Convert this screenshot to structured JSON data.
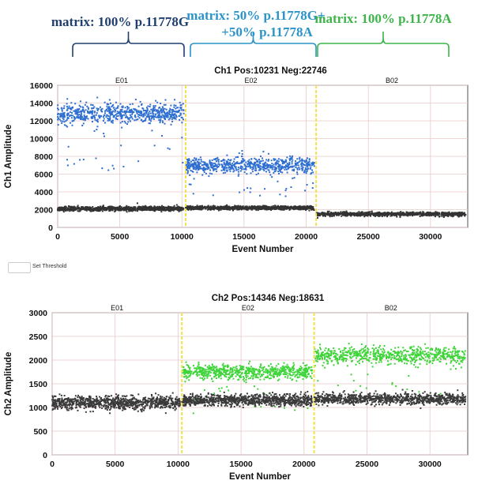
{
  "annotations": [
    {
      "lines": [
        "matrix: 100% p.11778G"
      ],
      "color": "#1f3f6e",
      "x_range": [
        0,
        10300
      ]
    },
    {
      "lines": [
        "matrix: 50% p.11778G+",
        "+50% p.11778A"
      ],
      "color": "#2a93c9",
      "x_range": [
        10300,
        20800
      ]
    },
    {
      "lines": [
        "matrix: 100% p.11778A"
      ],
      "color": "#3db54a",
      "x_range": [
        20800,
        33000
      ]
    }
  ],
  "threshold": {
    "label": "Set Threshold",
    "value": ""
  },
  "chart_data": [
    {
      "type": "scatter",
      "title": "Ch1 Pos:10231 Neg:22746",
      "xlabel": "Event Number",
      "ylabel": "Ch1 Amplitude",
      "xlim": [
        0,
        33000
      ],
      "ylim": [
        0,
        16000
      ],
      "xticks": [
        0,
        5000,
        10000,
        15000,
        20000,
        25000,
        30000
      ],
      "yticks": [
        0,
        2000,
        4000,
        6000,
        8000,
        10000,
        12000,
        14000,
        16000
      ],
      "grid": true,
      "wells": [
        {
          "name": "E01",
          "range": [
            0,
            10300
          ]
        },
        {
          "name": "E02",
          "range": [
            10300,
            20800
          ]
        },
        {
          "name": "B02",
          "range": [
            20800,
            33000
          ]
        }
      ],
      "well_divider_color": "#f2e24a",
      "clusters": [
        {
          "well": "E01",
          "kind": "positive",
          "color": "#2f6fd0",
          "mean": 12800,
          "sd": 550
        },
        {
          "well": "E01",
          "kind": "negative",
          "color": "#333333",
          "mean": 2100,
          "sd": 120
        },
        {
          "well": "E02",
          "kind": "positive",
          "color": "#2f6fd0",
          "mean": 7000,
          "sd": 450
        },
        {
          "well": "E02",
          "kind": "negative",
          "color": "#333333",
          "mean": 2200,
          "sd": 110
        },
        {
          "well": "B02",
          "kind": "negative",
          "color": "#333333",
          "mean": 1500,
          "sd": 110
        }
      ]
    },
    {
      "type": "scatter",
      "title": "Ch2 Pos:14346 Neg:18631",
      "xlabel": "Event Number",
      "ylabel": "Ch2 Amplitude",
      "xlim": [
        0,
        33000
      ],
      "ylim": [
        0,
        3000
      ],
      "xticks": [
        0,
        5000,
        10000,
        15000,
        20000,
        25000,
        30000
      ],
      "yticks": [
        0,
        500,
        1000,
        1500,
        2000,
        2500,
        3000
      ],
      "grid": true,
      "wells": [
        {
          "name": "E01",
          "range": [
            0,
            10300
          ]
        },
        {
          "name": "E02",
          "range": [
            10300,
            20800
          ]
        },
        {
          "name": "B02",
          "range": [
            20800,
            33000
          ]
        }
      ],
      "well_divider_color": "#f2e24a",
      "clusters": [
        {
          "well": "E01",
          "kind": "negative",
          "color": "#3a3a3a",
          "mean": 1100,
          "sd": 70
        },
        {
          "well": "E02",
          "kind": "positive",
          "color": "#3fd43a",
          "mean": 1750,
          "sd": 80
        },
        {
          "well": "E02",
          "kind": "negative",
          "color": "#3a3a3a",
          "mean": 1150,
          "sd": 60
        },
        {
          "well": "B02",
          "kind": "positive",
          "color": "#3fd43a",
          "mean": 2100,
          "sd": 85
        },
        {
          "well": "B02",
          "kind": "negative",
          "color": "#3a3a3a",
          "mean": 1180,
          "sd": 55
        }
      ]
    }
  ]
}
